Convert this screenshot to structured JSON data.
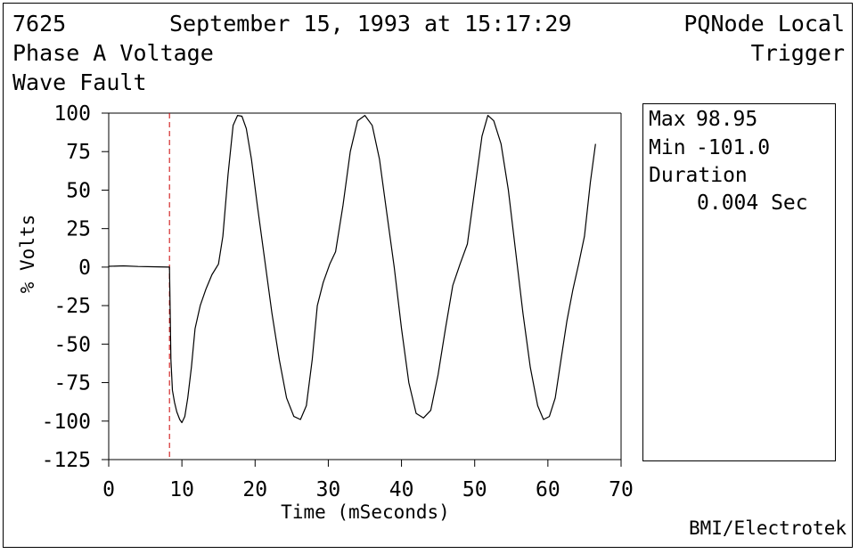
{
  "header": {
    "event_id": "7625",
    "timestamp": "September 15, 1993 at 15:17:29",
    "source": "PQNode Local",
    "channel": "Phase A Voltage",
    "trigger": "Trigger",
    "event_type": "Wave Fault"
  },
  "stats": {
    "max_label": "Max",
    "max_value": "98.95",
    "min_label": "Min",
    "min_value": "-101.0",
    "duration_label": "Duration",
    "duration_value": "0.004 Sec"
  },
  "footer": {
    "brand": "BMI/Electrotek"
  },
  "colors": {
    "trace": "#000000",
    "trigger_line": "#cc0000"
  },
  "chart_data": {
    "type": "line",
    "xlabel": "Time (mSeconds)",
    "ylabel": "% Volts",
    "xlim": [
      0,
      70
    ],
    "ylim": [
      -125,
      100
    ],
    "xticks": [
      0,
      10,
      20,
      30,
      40,
      50,
      60,
      70
    ],
    "yticks": [
      100,
      75,
      50,
      25,
      0,
      -25,
      -50,
      -75,
      -100,
      -125
    ],
    "trigger_x": 8.3,
    "series": [
      {
        "x": [
          0,
          2,
          4,
          6,
          8.3,
          8.5,
          8.7,
          9.0,
          9.3,
          9.7,
          10.0,
          10.4,
          10.8,
          11.3,
          11.8,
          12.5,
          13.3,
          14.1,
          15.0,
          15.6,
          16.3,
          17.0,
          17.6,
          18.2,
          18.8,
          19.5,
          20.3,
          21.3,
          22.3,
          23.3,
          24.3,
          25.3,
          26.2,
          27.0,
          27.8,
          28.5,
          29.3,
          30.2,
          31.0,
          32.0,
          33.0,
          34.0,
          35.0,
          36.0,
          37.0,
          38.0,
          39.0,
          40.0,
          41.0,
          42.0,
          43.0,
          44.0,
          45.0,
          46.0,
          47.0,
          48.0,
          49.0,
          50.0,
          51.0,
          51.8,
          52.6,
          53.6,
          54.6,
          55.6,
          56.6,
          57.6,
          58.6,
          59.4,
          60.2,
          61.0,
          61.8,
          62.6,
          63.4,
          64.2,
          65.0,
          65.8,
          66.5
        ],
        "y": [
          0.5,
          0.8,
          0.4,
          0.2,
          0,
          -60,
          -80,
          -88,
          -94,
          -99,
          -101,
          -97,
          -85,
          -65,
          -40,
          -25,
          -14,
          -5,
          2,
          20,
          60,
          92,
          98.5,
          98,
          90,
          70,
          40,
          5,
          -30,
          -60,
          -85,
          -97,
          -99,
          -90,
          -60,
          -25,
          -10,
          2,
          10,
          40,
          75,
          95,
          98.5,
          92,
          70,
          35,
          0,
          -40,
          -75,
          -95,
          -98,
          -93,
          -70,
          -40,
          -12,
          2,
          15,
          50,
          85,
          98.5,
          95,
          80,
          50,
          10,
          -30,
          -65,
          -90,
          -99,
          -97,
          -85,
          -60,
          -35,
          -15,
          2,
          20,
          55,
          80
        ]
      }
    ]
  }
}
